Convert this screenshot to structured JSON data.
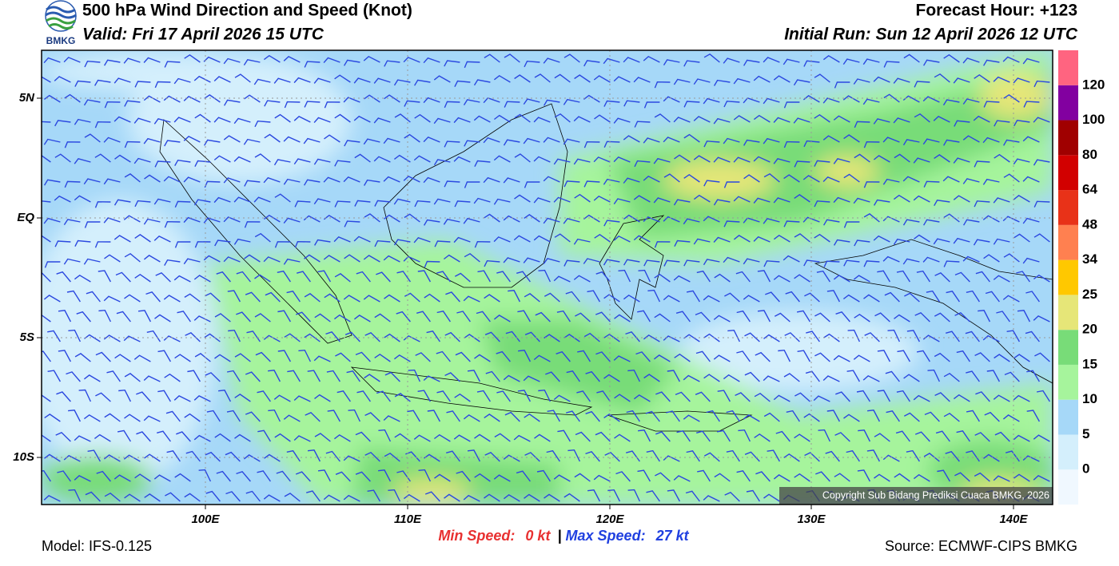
{
  "header": {
    "logo_text": "BMKG",
    "title": "500 hPa Wind Direction and Speed (Knot)",
    "valid": "Valid: Fri 17 April 2026 15 UTC",
    "forecast_hour": "Forecast Hour: +123",
    "initial_run": "Initial Run: Sun 12 April 2026 12 UTC"
  },
  "map": {
    "lat_labels": [
      "5N",
      "EQ",
      "5S",
      "10S"
    ],
    "lon_labels": [
      "100E",
      "110E",
      "120E",
      "130E",
      "140E"
    ],
    "copyright": "Copyright Sub Bidang Prediksi Cuaca BMKG, 2026"
  },
  "colorbar": {
    "levels": [
      0,
      5,
      10,
      15,
      20,
      25,
      34,
      48,
      64,
      80,
      100,
      120
    ],
    "colors": [
      "#f0f8ff",
      "#d4effc",
      "#a6d8f8",
      "#a6f49c",
      "#78dc78",
      "#e6e678",
      "#ffc800",
      "#ff8050",
      "#e83218",
      "#d20000",
      "#a00000",
      "#8200a0",
      "#ff6480"
    ]
  },
  "footer": {
    "model": "Model: IFS-0.125",
    "min_label": "Min Speed:",
    "min_value": "0 kt",
    "separator": "|",
    "max_label": "Max Speed:",
    "max_value": "27 kt",
    "source": "Source: ECMWF-CIPS BMKG"
  }
}
